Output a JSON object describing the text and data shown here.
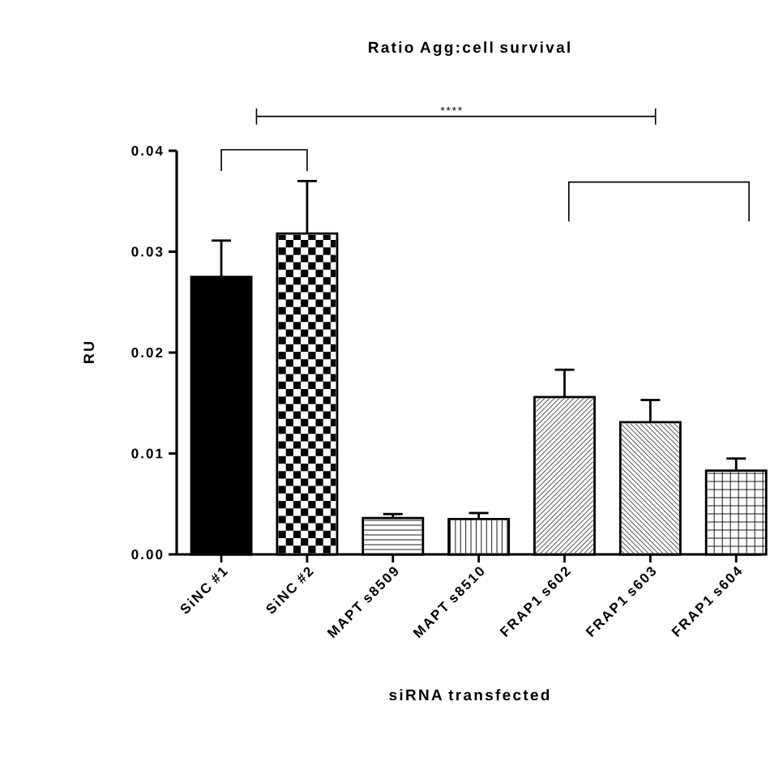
{
  "chart_data": {
    "type": "bar",
    "title": "Ratio Agg:cell survival",
    "xlabel": "siRNA transfected",
    "ylabel": "RU",
    "categories": [
      "SiNC #1",
      "SiNC #2",
      "MAPT s8509",
      "MAPT s8510",
      "FRAP1 s602",
      "FRAP1 s603",
      "FRAP1 s604"
    ],
    "values": [
      0.0275,
      0.0318,
      0.0036,
      0.0035,
      0.0156,
      0.0131,
      0.0083
    ],
    "errors": [
      0.0036,
      0.0052,
      0.0004,
      0.0006,
      0.0027,
      0.0022,
      0.0012
    ],
    "colors": [
      "#000000",
      "#000000",
      "#000000",
      "#000000",
      "#000000",
      "#000000",
      "#000000"
    ],
    "ylim": [
      0,
      0.04
    ],
    "yticks": [
      {
        "value": 0,
        "label": "0.00"
      },
      {
        "value": 0.01,
        "label": "0.01"
      },
      {
        "value": 0.02,
        "label": "0.02"
      },
      {
        "value": 0.03,
        "label": "0.03"
      },
      {
        "value": 0.04,
        "label": "0.04"
      }
    ],
    "annotations": [
      "****"
    ]
  }
}
